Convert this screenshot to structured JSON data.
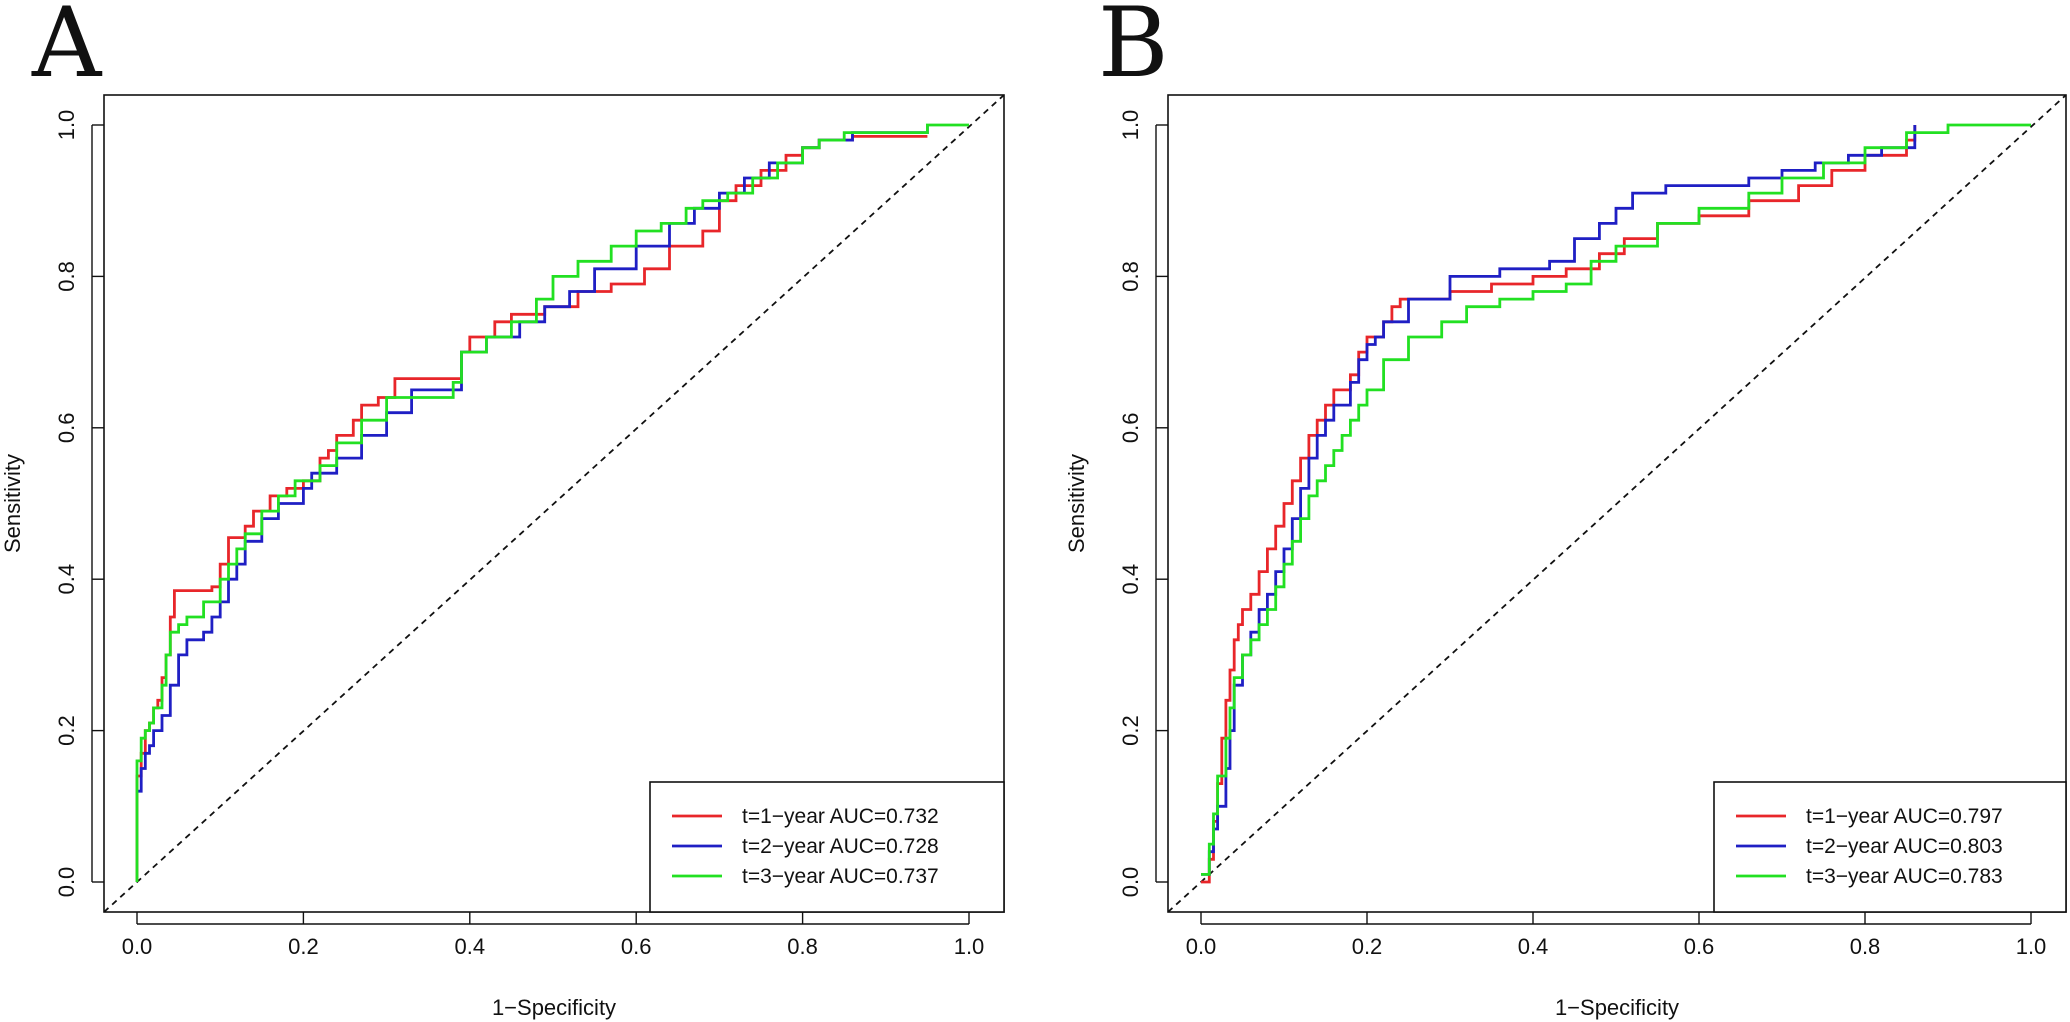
{
  "chart_data": [
    {
      "type": "line",
      "panel": "A",
      "xlabel": "1−Specificity",
      "ylabel": "Sensitivity",
      "xlim": [
        0,
        1
      ],
      "ylim": [
        0,
        1
      ],
      "xticks": [
        "0.0",
        "0.2",
        "0.4",
        "0.6",
        "0.8",
        "1.0"
      ],
      "yticks": [
        "0.0",
        "0.2",
        "0.4",
        "0.6",
        "0.8",
        "1.0"
      ],
      "legend_position": "bottom-right",
      "reference_line": "diagonal dashed",
      "series": [
        {
          "name": "t=1−year AUC=0.732",
          "color": "#e8262a",
          "x": [
            0,
            0,
            0.005,
            0.01,
            0.015,
            0.02,
            0.025,
            0.03,
            0.035,
            0.04,
            0.045,
            0.05,
            0.09,
            0.1,
            0.11,
            0.13,
            0.14,
            0.16,
            0.18,
            0.2,
            0.22,
            0.23,
            0.24,
            0.26,
            0.27,
            0.29,
            0.31,
            0.36,
            0.39,
            0.4,
            0.43,
            0.45,
            0.49,
            0.53,
            0.57,
            0.61,
            0.64,
            0.68,
            0.7,
            0.72,
            0.75,
            0.78,
            0.8,
            0.82,
            0.86,
            0.95
          ],
          "y": [
            0,
            0.14,
            0.17,
            0.2,
            0.21,
            0.23,
            0.24,
            0.27,
            0.3,
            0.35,
            0.385,
            0.385,
            0.39,
            0.42,
            0.455,
            0.47,
            0.49,
            0.51,
            0.52,
            0.53,
            0.56,
            0.57,
            0.59,
            0.61,
            0.63,
            0.64,
            0.665,
            0.665,
            0.7,
            0.72,
            0.74,
            0.75,
            0.76,
            0.78,
            0.79,
            0.81,
            0.84,
            0.86,
            0.9,
            0.92,
            0.94,
            0.96,
            0.97,
            0.98,
            0.985,
            0.985
          ]
        },
        {
          "name": "t=2−year AUC=0.728",
          "color": "#1f1fc4",
          "x": [
            0,
            0.005,
            0.01,
            0.015,
            0.02,
            0.03,
            0.04,
            0.05,
            0.06,
            0.08,
            0.09,
            0.1,
            0.11,
            0.12,
            0.13,
            0.15,
            0.17,
            0.2,
            0.21,
            0.24,
            0.27,
            0.3,
            0.33,
            0.38,
            0.39,
            0.42,
            0.46,
            0.49,
            0.52,
            0.55,
            0.6,
            0.64,
            0.67,
            0.7,
            0.73,
            0.76,
            0.8,
            0.82,
            0.86,
            0.9,
            0.95
          ],
          "y": [
            0.12,
            0.15,
            0.17,
            0.18,
            0.2,
            0.22,
            0.26,
            0.3,
            0.32,
            0.33,
            0.35,
            0.37,
            0.4,
            0.42,
            0.45,
            0.48,
            0.5,
            0.52,
            0.54,
            0.56,
            0.59,
            0.62,
            0.65,
            0.65,
            0.7,
            0.72,
            0.74,
            0.76,
            0.78,
            0.81,
            0.84,
            0.87,
            0.89,
            0.91,
            0.93,
            0.95,
            0.97,
            0.98,
            0.99,
            0.99,
            1.0
          ]
        },
        {
          "name": "t=3−year AUC=0.737",
          "color": "#22e022",
          "x": [
            0,
            0,
            0.005,
            0.01,
            0.015,
            0.02,
            0.03,
            0.035,
            0.04,
            0.05,
            0.06,
            0.08,
            0.1,
            0.11,
            0.12,
            0.13,
            0.15,
            0.17,
            0.19,
            0.22,
            0.24,
            0.27,
            0.3,
            0.38,
            0.39,
            0.42,
            0.45,
            0.48,
            0.5,
            0.53,
            0.57,
            0.6,
            0.63,
            0.66,
            0.68,
            0.71,
            0.74,
            0.77,
            0.8,
            0.82,
            0.85,
            0.9,
            0.95,
            1.0
          ],
          "y": [
            0,
            0.16,
            0.19,
            0.2,
            0.21,
            0.23,
            0.26,
            0.3,
            0.33,
            0.34,
            0.35,
            0.37,
            0.4,
            0.42,
            0.44,
            0.46,
            0.49,
            0.51,
            0.53,
            0.55,
            0.58,
            0.61,
            0.64,
            0.66,
            0.7,
            0.72,
            0.74,
            0.77,
            0.8,
            0.82,
            0.84,
            0.86,
            0.87,
            0.89,
            0.9,
            0.91,
            0.93,
            0.95,
            0.97,
            0.98,
            0.99,
            0.99,
            1.0,
            1.0
          ]
        }
      ]
    },
    {
      "type": "line",
      "panel": "B",
      "xlabel": "1−Specificity",
      "ylabel": "Sensitivity",
      "xlim": [
        0,
        1
      ],
      "ylim": [
        0,
        1
      ],
      "xticks": [
        "0.0",
        "0.2",
        "0.4",
        "0.6",
        "0.8",
        "1.0"
      ],
      "yticks": [
        "0.0",
        "0.2",
        "0.4",
        "0.6",
        "0.8",
        "1.0"
      ],
      "legend_position": "bottom-right",
      "reference_line": "diagonal dashed",
      "series": [
        {
          "name": "t=1−year AUC=0.797",
          "color": "#e8262a",
          "x": [
            0,
            0.01,
            0.015,
            0.02,
            0.025,
            0.03,
            0.035,
            0.04,
            0.045,
            0.05,
            0.06,
            0.07,
            0.08,
            0.09,
            0.1,
            0.11,
            0.12,
            0.13,
            0.14,
            0.15,
            0.16,
            0.18,
            0.19,
            0.2,
            0.22,
            0.23,
            0.24,
            0.3,
            0.35,
            0.4,
            0.44,
            0.48,
            0.51,
            0.55,
            0.6,
            0.66,
            0.72,
            0.76,
            0.8,
            0.85,
            0.86
          ],
          "y": [
            0,
            0.03,
            0.08,
            0.13,
            0.19,
            0.24,
            0.28,
            0.32,
            0.34,
            0.36,
            0.38,
            0.41,
            0.44,
            0.47,
            0.5,
            0.53,
            0.56,
            0.59,
            0.61,
            0.63,
            0.65,
            0.67,
            0.7,
            0.72,
            0.74,
            0.76,
            0.77,
            0.78,
            0.79,
            0.8,
            0.81,
            0.83,
            0.85,
            0.87,
            0.88,
            0.9,
            0.92,
            0.94,
            0.96,
            0.98,
            1.0
          ]
        },
        {
          "name": "t=2−year AUC=0.803",
          "color": "#1f1fc4",
          "x": [
            0,
            0.01,
            0.015,
            0.02,
            0.03,
            0.035,
            0.04,
            0.05,
            0.06,
            0.07,
            0.08,
            0.09,
            0.1,
            0.11,
            0.12,
            0.13,
            0.14,
            0.15,
            0.16,
            0.18,
            0.19,
            0.2,
            0.21,
            0.22,
            0.25,
            0.3,
            0.36,
            0.42,
            0.45,
            0.48,
            0.5,
            0.52,
            0.56,
            0.6,
            0.66,
            0.7,
            0.74,
            0.78,
            0.82,
            0.86
          ],
          "y": [
            0.01,
            0.04,
            0.07,
            0.1,
            0.15,
            0.2,
            0.26,
            0.3,
            0.33,
            0.36,
            0.38,
            0.41,
            0.44,
            0.48,
            0.52,
            0.56,
            0.59,
            0.61,
            0.63,
            0.66,
            0.69,
            0.71,
            0.72,
            0.74,
            0.77,
            0.8,
            0.81,
            0.82,
            0.85,
            0.87,
            0.89,
            0.91,
            0.92,
            0.92,
            0.93,
            0.94,
            0.95,
            0.96,
            0.97,
            1.0
          ]
        },
        {
          "name": "t=3−year AUC=0.783",
          "color": "#22e022",
          "x": [
            0,
            0.01,
            0.015,
            0.02,
            0.03,
            0.035,
            0.04,
            0.05,
            0.06,
            0.07,
            0.08,
            0.09,
            0.1,
            0.11,
            0.12,
            0.13,
            0.14,
            0.15,
            0.16,
            0.17,
            0.18,
            0.19,
            0.2,
            0.22,
            0.25,
            0.29,
            0.32,
            0.36,
            0.4,
            0.44,
            0.47,
            0.5,
            0.55,
            0.6,
            0.66,
            0.7,
            0.75,
            0.8,
            0.85,
            0.9,
            1.0
          ],
          "y": [
            0.01,
            0.05,
            0.09,
            0.14,
            0.19,
            0.23,
            0.27,
            0.3,
            0.32,
            0.34,
            0.36,
            0.39,
            0.42,
            0.45,
            0.48,
            0.51,
            0.53,
            0.55,
            0.57,
            0.59,
            0.61,
            0.63,
            0.65,
            0.69,
            0.72,
            0.74,
            0.76,
            0.77,
            0.78,
            0.79,
            0.82,
            0.84,
            0.87,
            0.89,
            0.91,
            0.93,
            0.95,
            0.97,
            0.99,
            1.0,
            1.0
          ]
        }
      ]
    }
  ]
}
